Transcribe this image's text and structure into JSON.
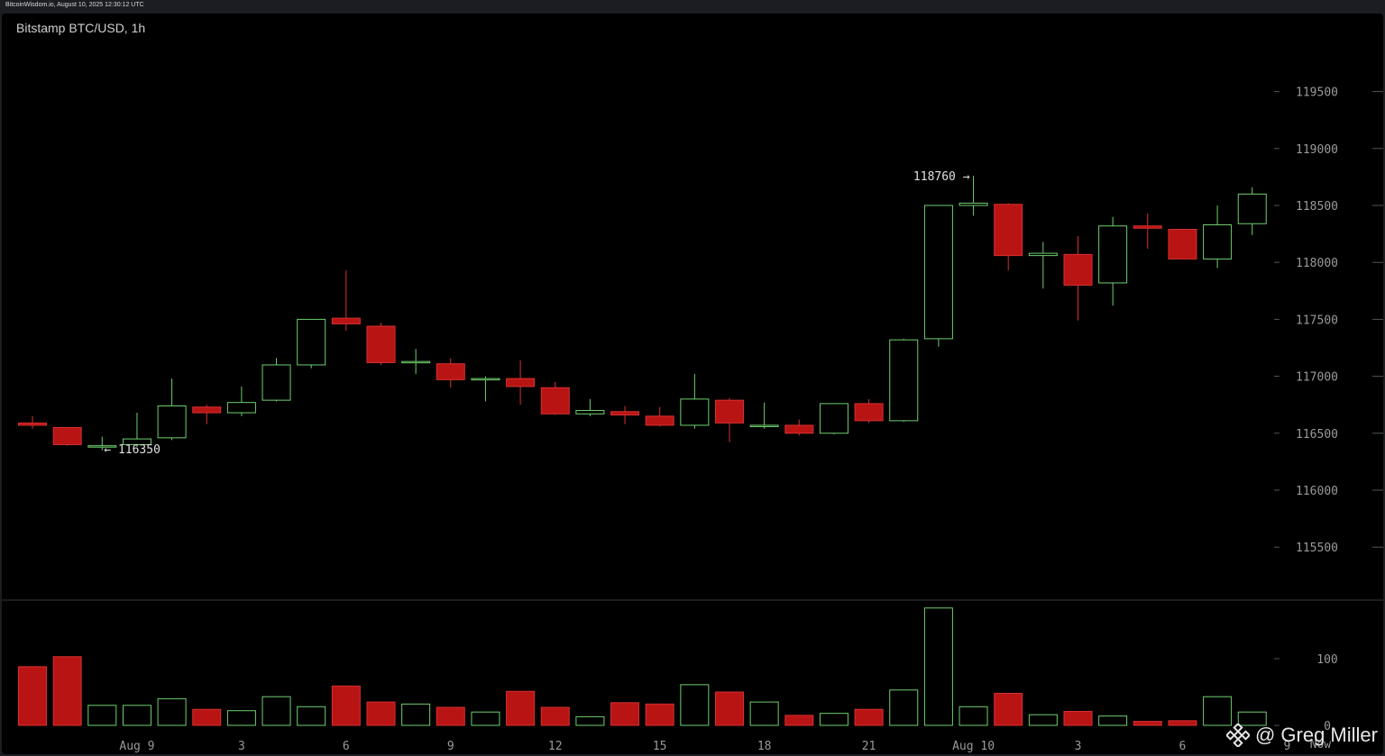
{
  "header": {
    "source_line": "BitcoinWisdom.io, August 10, 2025 12:30:12 UTC"
  },
  "watermark": {
    "text": "@ Greg Miller",
    "icon": "binance-diamond-icon"
  },
  "colors": {
    "up": "#6fcf6f",
    "down": "#b81414",
    "down_edge": "#d83030",
    "grid_text": "#9a9a9a"
  },
  "chart_data": {
    "type": "candlestick",
    "title": "Bitstamp BTC/USD, 1h",
    "price_axis": {
      "ticks": [
        115500,
        116000,
        116500,
        117000,
        117500,
        118000,
        118500,
        119000,
        119500
      ],
      "range": [
        115000,
        120000
      ]
    },
    "volume_axis": {
      "ticks": [
        0,
        100
      ],
      "range": [
        0,
        175
      ]
    },
    "x_axis": {
      "labels": [
        {
          "index": 3,
          "text": "Aug 9"
        },
        {
          "index": 6,
          "text": "3"
        },
        {
          "index": 9,
          "text": "6"
        },
        {
          "index": 12,
          "text": "9"
        },
        {
          "index": 15,
          "text": "12"
        },
        {
          "index": 18,
          "text": "15"
        },
        {
          "index": 21,
          "text": "18"
        },
        {
          "index": 24,
          "text": "21"
        },
        {
          "index": 27,
          "text": "Aug 10"
        },
        {
          "index": 30,
          "text": "3"
        },
        {
          "index": 33,
          "text": "6"
        },
        {
          "index": 36,
          "text": "9"
        },
        {
          "index": 36.75,
          "text": "Now"
        }
      ]
    },
    "annotations": {
      "low": {
        "index": 2,
        "value": 116350,
        "text": "← 116350"
      },
      "high": {
        "index": 27,
        "value": 118760,
        "text": "118760 →"
      }
    },
    "candles": [
      {
        "o": 116590,
        "h": 116650,
        "l": 116540,
        "c": 116570,
        "v": 88
      },
      {
        "o": 116550,
        "h": 116550,
        "l": 116390,
        "c": 116400,
        "v": 103
      },
      {
        "o": 116390,
        "h": 116470,
        "l": 116350,
        "c": 116390,
        "v": 30
      },
      {
        "o": 116400,
        "h": 116680,
        "l": 116380,
        "c": 116450,
        "v": 30
      },
      {
        "o": 116460,
        "h": 116980,
        "l": 116440,
        "c": 116740,
        "v": 40
      },
      {
        "o": 116730,
        "h": 116750,
        "l": 116580,
        "c": 116680,
        "v": 24
      },
      {
        "o": 116680,
        "h": 116910,
        "l": 116650,
        "c": 116770,
        "v": 22
      },
      {
        "o": 116790,
        "h": 117160,
        "l": 116780,
        "c": 117100,
        "v": 43
      },
      {
        "o": 117100,
        "h": 117500,
        "l": 117070,
        "c": 117500,
        "v": 28
      },
      {
        "o": 117510,
        "h": 117930,
        "l": 117400,
        "c": 117460,
        "v": 59
      },
      {
        "o": 117440,
        "h": 117470,
        "l": 117100,
        "c": 117120,
        "v": 35
      },
      {
        "o": 117120,
        "h": 117240,
        "l": 117020,
        "c": 117130,
        "v": 32
      },
      {
        "o": 117110,
        "h": 117160,
        "l": 116900,
        "c": 116970,
        "v": 27
      },
      {
        "o": 116970,
        "h": 117000,
        "l": 116780,
        "c": 116980,
        "v": 20
      },
      {
        "o": 116980,
        "h": 117140,
        "l": 116750,
        "c": 116910,
        "v": 51
      },
      {
        "o": 116900,
        "h": 116950,
        "l": 116660,
        "c": 116670,
        "v": 27
      },
      {
        "o": 116670,
        "h": 116800,
        "l": 116650,
        "c": 116700,
        "v": 13
      },
      {
        "o": 116690,
        "h": 116740,
        "l": 116580,
        "c": 116660,
        "v": 34
      },
      {
        "o": 116650,
        "h": 116730,
        "l": 116560,
        "c": 116570,
        "v": 32
      },
      {
        "o": 116570,
        "h": 117020,
        "l": 116540,
        "c": 116800,
        "v": 61
      },
      {
        "o": 116790,
        "h": 116810,
        "l": 116420,
        "c": 116590,
        "v": 50
      },
      {
        "o": 116560,
        "h": 116770,
        "l": 116540,
        "c": 116570,
        "v": 35
      },
      {
        "o": 116570,
        "h": 116620,
        "l": 116480,
        "c": 116500,
        "v": 15
      },
      {
        "o": 116500,
        "h": 116760,
        "l": 116490,
        "c": 116760,
        "v": 18
      },
      {
        "o": 116760,
        "h": 116800,
        "l": 116590,
        "c": 116610,
        "v": 24
      },
      {
        "o": 116610,
        "h": 117330,
        "l": 116600,
        "c": 117320,
        "v": 53
      },
      {
        "o": 117330,
        "h": 118500,
        "l": 117260,
        "c": 118500,
        "v": 176
      },
      {
        "o": 118500,
        "h": 118760,
        "l": 118410,
        "c": 118520,
        "v": 28
      },
      {
        "o": 118510,
        "h": 118520,
        "l": 117930,
        "c": 118060,
        "v": 48
      },
      {
        "o": 118060,
        "h": 118180,
        "l": 117770,
        "c": 118080,
        "v": 16
      },
      {
        "o": 118070,
        "h": 118230,
        "l": 117490,
        "c": 117800,
        "v": 21
      },
      {
        "o": 117820,
        "h": 118400,
        "l": 117620,
        "c": 118320,
        "v": 14
      },
      {
        "o": 118320,
        "h": 118430,
        "l": 118120,
        "c": 118300,
        "v": 6
      },
      {
        "o": 118290,
        "h": 118290,
        "l": 118030,
        "c": 118030,
        "v": 7
      },
      {
        "o": 118030,
        "h": 118500,
        "l": 117950,
        "c": 118330,
        "v": 43
      },
      {
        "o": 118340,
        "h": 118660,
        "l": 118240,
        "c": 118600,
        "v": 20
      }
    ]
  }
}
